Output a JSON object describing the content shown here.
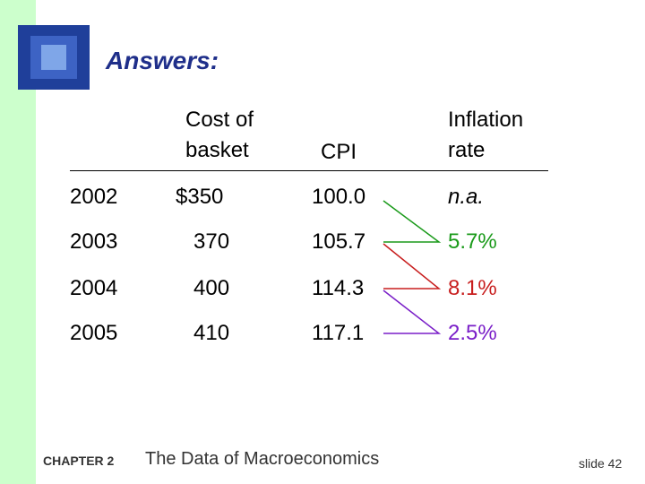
{
  "header": {
    "title": "Answers:"
  },
  "table": {
    "columns": [
      "",
      "Cost of basket",
      "CPI",
      "Inflation rate"
    ],
    "rows": [
      [
        "2002",
        "$350",
        "100.0",
        "n.a."
      ],
      [
        "2003",
        "370",
        "105.7",
        "5.7%"
      ],
      [
        "2004",
        "400",
        "114.3",
        "8.1%"
      ],
      [
        "2005",
        "410",
        "117.1",
        "2.5%"
      ]
    ]
  },
  "footer": {
    "chapter": "CHAPTER 2",
    "book": "The Data of Macroeconomics",
    "slide": "slide 42"
  }
}
